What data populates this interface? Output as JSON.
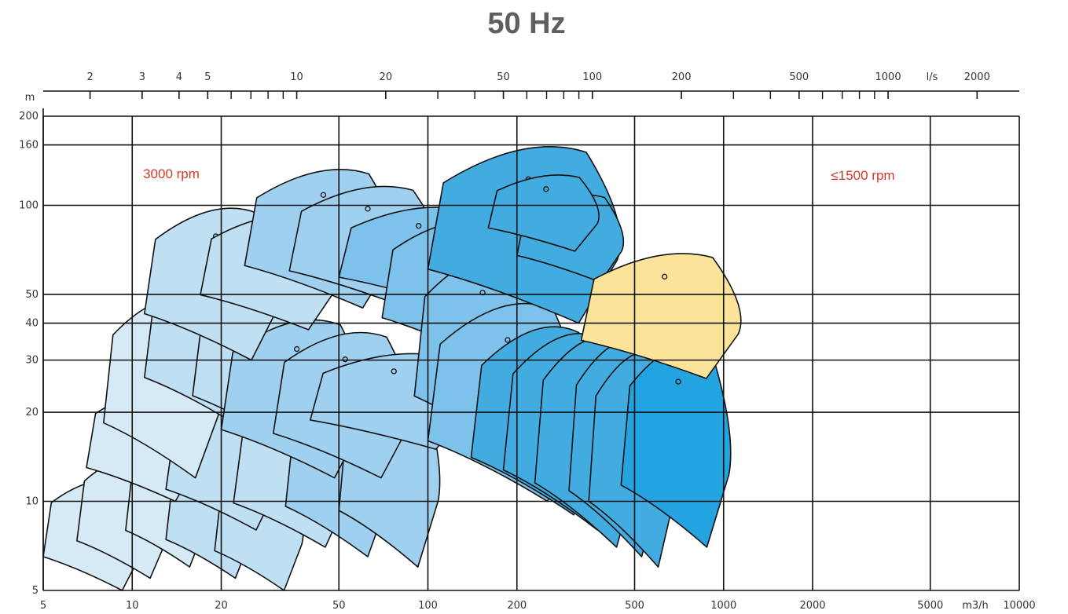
{
  "title": "50 Hz",
  "chart_data": {
    "type": "area",
    "title": "50 Hz",
    "x_axis": {
      "unit": "m3/h",
      "scale": "log",
      "range": [
        5,
        10000
      ],
      "ticks": [
        "5",
        "10",
        "20",
        "50",
        "100",
        "200",
        "500",
        "1000",
        "2000",
        "5000",
        "10000"
      ]
    },
    "x2_axis": {
      "unit": "l/s",
      "scale": "log",
      "ticks": [
        "2",
        "3",
        "4",
        "5",
        "10",
        "20",
        "50",
        "100",
        "200",
        "500",
        "1000",
        "2000"
      ]
    },
    "y_axis": {
      "unit": "m",
      "scale": "log",
      "range": [
        5,
        200
      ],
      "ticks": [
        "5",
        "10",
        "20",
        "30",
        "40",
        "50",
        "100",
        "160",
        "200"
      ]
    },
    "grid": true,
    "annotations": [
      {
        "text": "3000 rpm",
        "color": "#d03a2a"
      },
      {
        "text": "≤1500 rpm",
        "color": "#d03a2a"
      }
    ],
    "regions": [
      {
        "group": "3000 rpm",
        "q": [
          5.0,
          11.0
        ],
        "h": [
          5,
          12
        ]
      },
      {
        "group": "3000 rpm",
        "q": [
          6.5,
          13.5
        ],
        "h": [
          5.5,
          14.5
        ]
      },
      {
        "group": "3000 rpm",
        "q": [
          9.5,
          18
        ],
        "h": [
          6,
          15.5
        ]
      },
      {
        "group": "3000 rpm",
        "q": [
          13,
          26
        ],
        "h": [
          5.5,
          15
        ]
      },
      {
        "group": "3000 rpm",
        "q": [
          19,
          38
        ],
        "h": [
          5,
          14
        ]
      },
      {
        "group": "3000 rpm",
        "q": [
          7,
          17
        ],
        "h": [
          10,
          24
        ]
      },
      {
        "group": "3000 rpm",
        "q": [
          13,
          32
        ],
        "h": [
          8,
          23
        ]
      },
      {
        "group": "3000 rpm",
        "q": [
          22,
          55
        ],
        "h": [
          7,
          22
        ]
      },
      {
        "group": "3000 rpm",
        "q": [
          33,
          75
        ],
        "h": [
          6.5,
          24
        ]
      },
      {
        "group": "3000 rpm",
        "q": [
          50,
          110
        ],
        "h": [
          6,
          26
        ]
      },
      {
        "group": "3000 rpm",
        "q": [
          8,
          20
        ],
        "h": [
          12,
          50
        ]
      },
      {
        "group": "3000 rpm",
        "q": [
          11,
          28
        ],
        "h": [
          18,
          63
        ]
      },
      {
        "group": "3000 rpm",
        "q": [
          16,
          45
        ],
        "h": [
          15,
          60
        ]
      },
      {
        "group": "3000 rpm",
        "q": [
          20,
          62
        ],
        "h": [
          12,
          42
        ]
      },
      {
        "group": "3000 rpm",
        "q": [
          30,
          88
        ],
        "h": [
          12,
          38
        ]
      },
      {
        "group": "3000 rpm",
        "q": [
          40,
          140
        ],
        "h": [
          15,
          32
        ]
      },
      {
        "group": "3000 rpm",
        "q": [
          11,
          32
        ],
        "h": [
          30,
          100
        ]
      },
      {
        "group": "3000 rpm",
        "q": [
          17,
          50
        ],
        "h": [
          38,
          94
        ]
      },
      {
        "group": "3000 rpm",
        "q": [
          24,
          78
        ],
        "h": [
          45,
          135
        ]
      },
      {
        "group": "3000 rpm",
        "q": [
          34,
          110
        ],
        "h": [
          45,
          118
        ]
      },
      {
        "group": "3000 rpm",
        "q": [
          50,
          165
        ],
        "h": [
          45,
          100
        ]
      },
      {
        "group": "3000 rpm",
        "q": [
          70,
          200
        ],
        "h": [
          30,
          90
        ]
      },
      {
        "group": "3000 rpm",
        "q": [
          90,
          250
        ],
        "h": [
          14,
          70
        ]
      },
      {
        "group": "3000 rpm",
        "q": [
          100,
          330
        ],
        "h": [
          10,
          48
        ]
      },
      {
        "group": "3000 rpm",
        "q": [
          140,
          390
        ],
        "h": [
          9,
          40
        ]
      },
      {
        "group": "3000 rpm",
        "q": [
          180,
          460
        ],
        "h": [
          8,
          38
        ]
      },
      {
        "group": "3000 rpm",
        "q": [
          230,
          520
        ],
        "h": [
          7,
          37
        ]
      },
      {
        "group": "3000 rpm",
        "q": [
          300,
          620
        ],
        "h": [
          6.5,
          36
        ]
      },
      {
        "group": "3000 rpm",
        "q": [
          350,
          700
        ],
        "h": [
          6,
          33
        ]
      },
      {
        "group": "3000 rpm",
        "q": [
          450,
          1060
        ],
        "h": [
          7,
          35
        ]
      },
      {
        "group": "3000 rpm",
        "q": [
          100,
          450
        ],
        "h": [
          40,
          162
        ]
      },
      {
        "group": "3000 rpm",
        "q": [
          200,
          460
        ],
        "h": [
          55,
          110
        ]
      },
      {
        "group": "3000 rpm",
        "q": [
          160,
          380
        ],
        "h": [
          70,
          128
        ]
      },
      {
        "group": "≤1500 rpm",
        "q": [
          330,
          1150
        ],
        "h": [
          26,
          70
        ]
      }
    ]
  }
}
